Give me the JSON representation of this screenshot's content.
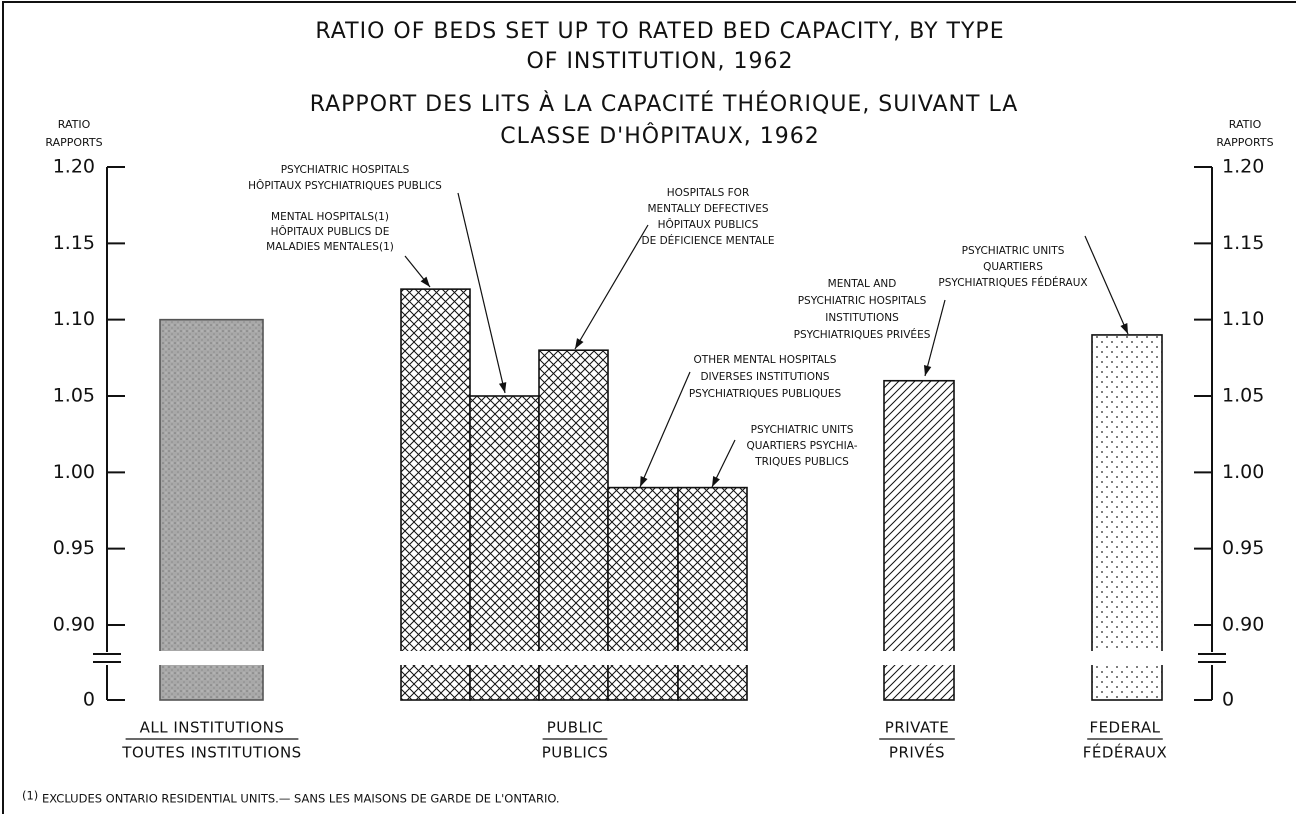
{
  "chart_data": {
    "type": "bar",
    "title": [
      "RATIO OF BEDS SET UP TO RATED BED CAPACITY, BY TYPE",
      "OF INSTITUTION, 1962"
    ],
    "subtitle": [
      "RAPPORT DES LITS À LA CAPACITÉ THÉORIQUE, SUIVANT LA",
      "CLASSE D'HÔPITAUX, 1962"
    ],
    "y_label": [
      "RATIO",
      "RAPPORTS"
    ],
    "y2_label": [
      "RATIO",
      "RAPPORTS"
    ],
    "categories": [
      null,
      [
        "MENTAL HOSPITALS(1)",
        "HÔPITAUX PUBLICS DE",
        "MALADIES MENTALES(1)"
      ],
      [
        "PSYCHIATRIC HOSPITALS",
        "HÔPITAUX PSYCHIATRIQUES PUBLICS"
      ],
      [
        "HOSPITALS FOR",
        "MENTALLY DEFECTIVES",
        "HÔPITAUX PUBLICS",
        "DE DÉFICIENCE MENTALE"
      ],
      [
        "OTHER MENTAL HOSPITALS",
        "DIVERSES INSTITUTIONS",
        "PSYCHIATRIQUES PUBLIQUES"
      ],
      [
        "PSYCHIATRIC UNITS",
        "QUARTIERS PSYCHIA-",
        "TRIQUES PUBLICS"
      ],
      [
        "MENTAL AND",
        "PSYCHIATRIC HOSPITALS",
        "INSTITUTIONS",
        "PSYCHIATRIQUES PRIVÉES"
      ],
      [
        "PSYCHIATRIC UNITS",
        "QUARTIERS",
        "PSYCHIATRIQUES FÉDÉRAUX"
      ]
    ],
    "values": [
      1.1,
      1.12,
      1.05,
      1.08,
      0.99,
      0.99,
      1.06,
      1.09
    ],
    "patterns": [
      "stipple",
      "crosshatch",
      "crosshatch",
      "crosshatch",
      "crosshatch",
      "crosshatch",
      "hatch",
      "dots"
    ],
    "groups": [
      [
        "ALL INSTITUTIONS",
        "TOUTES INSTITUTIONS"
      ],
      [
        "PUBLIC",
        "PUBLICS"
      ],
      [
        "PRIVATE",
        "PRIVÉS"
      ],
      [
        "FEDERAL",
        "FÉDÉRAUX"
      ]
    ],
    "ylim": [
      0,
      1.2
    ],
    "axis_break": [
      0,
      0.9
    ],
    "yticks": [
      0,
      {
        "value": 0.9,
        "label": "0.90"
      },
      0.95,
      {
        "value": 1.0,
        "label": "1.00"
      },
      1.05,
      {
        "value": 1.1,
        "label": "1.10"
      },
      1.15,
      {
        "value": 1.2,
        "label": "1.20"
      }
    ],
    "footnote_marker": "(1)",
    "footnote": "EXCLUDES ONTARIO RESIDENTIAL UNITS.— SANS LES MAISONS DE GARDE DE L'ONTARIO."
  }
}
